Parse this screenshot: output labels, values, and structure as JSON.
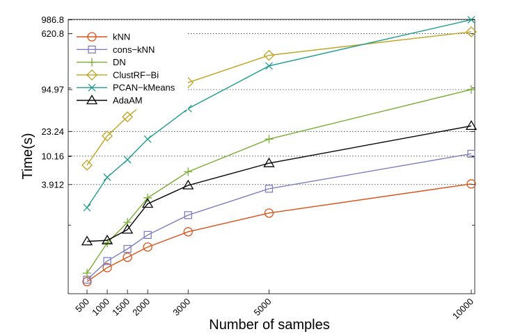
{
  "chart_data": {
    "type": "line",
    "xlabel": "Number of samples",
    "ylabel": "Time(s)",
    "x": [
      500,
      1000,
      1500,
      2000,
      3000,
      5000,
      10000
    ],
    "x_tick_labels": [
      "500",
      "1000",
      "1500",
      "2000",
      "3000",
      "5000",
      "10000"
    ],
    "xlim": [
      500,
      10000
    ],
    "yscale": "log",
    "ylim": [
      0.1,
      1000
    ],
    "y_tick_labels": [
      "986.8",
      "620.8",
      "94.97",
      "23.24",
      "10.16",
      "3.912"
    ],
    "y_tick_values": [
      986.8,
      620.8,
      94.97,
      23.24,
      10.16,
      3.912
    ],
    "grid": "horizontal dotted at labeled y ticks",
    "legend_position": "top-left",
    "series": [
      {
        "name": "kNN",
        "color": "#d95319",
        "marker": "circle",
        "values": [
          0.15,
          0.24,
          0.34,
          0.48,
          0.8,
          1.5,
          4.0
        ]
      },
      {
        "name": "cons−kNN",
        "color": "#7e7ec0",
        "marker": "square",
        "values": [
          0.16,
          0.3,
          0.45,
          0.72,
          1.4,
          3.4,
          11.0
        ]
      },
      {
        "name": "DN",
        "color": "#77ac30",
        "marker": "plus",
        "values": [
          0.2,
          0.55,
          1.1,
          2.5,
          6.0,
          18.0,
          95.0
        ]
      },
      {
        "name": "ClustRF−Bi",
        "color": "#bfa31e",
        "marker": "diamond",
        "values": [
          7.5,
          20.0,
          38.0,
          66.0,
          120.0,
          300.0,
          660.0
        ]
      },
      {
        "name": "PCAN−kMeans",
        "color": "#1d9c8c",
        "marker": "x",
        "values": [
          1.8,
          5.0,
          9.0,
          18.0,
          50.0,
          210.0,
          990.0
        ]
      },
      {
        "name": "AdaAM",
        "color": "#000000",
        "marker": "triangle",
        "values": [
          0.58,
          0.6,
          0.86,
          2.05,
          3.8,
          8.0,
          28.0
        ]
      }
    ]
  }
}
